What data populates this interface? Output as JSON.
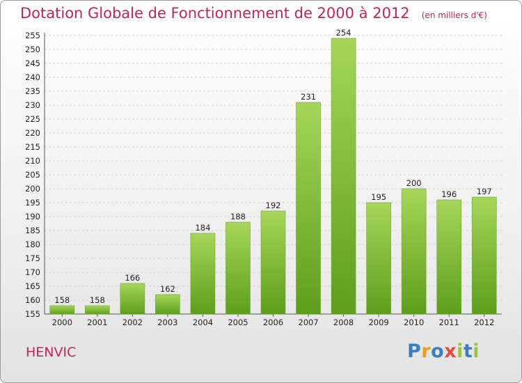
{
  "header": {
    "title": "Dotation Globale de Fonctionnement de 2000 à 2012",
    "unit_note": "(en milliers d'€)"
  },
  "commune": "HENVIC",
  "logo": {
    "text": "Proxiti",
    "letter_colors": [
      "#3a7fc0",
      "#f39c12",
      "#3a7fc0",
      "#e74c3c",
      "#9bc53d",
      "#3a7fc0",
      "#9bc53d"
    ]
  },
  "colors": {
    "bar_top": "#a6d65a",
    "bar_bottom": "#5e9e1c",
    "title": "#c4235a"
  },
  "chart_data": {
    "type": "bar",
    "categories": [
      "2000",
      "2001",
      "2002",
      "2003",
      "2004",
      "2005",
      "2006",
      "2007",
      "2008",
      "2009",
      "2010",
      "2011",
      "2012"
    ],
    "values": [
      158,
      158,
      166,
      162,
      184,
      188,
      192,
      231,
      254,
      195,
      200,
      196,
      197
    ],
    "value_labels": [
      "158",
      "158",
      "166",
      "162",
      "184",
      "188",
      "192",
      "231",
      "254",
      "195",
      "200",
      "196",
      "197"
    ],
    "title": "Dotation Globale de Fonctionnement de 2000 à 2012",
    "ylim": [
      155,
      255
    ],
    "yticks": [
      155,
      160,
      165,
      170,
      175,
      180,
      185,
      190,
      195,
      200,
      205,
      210,
      215,
      220,
      225,
      230,
      235,
      240,
      245,
      250,
      255
    ],
    "grid": true
  }
}
